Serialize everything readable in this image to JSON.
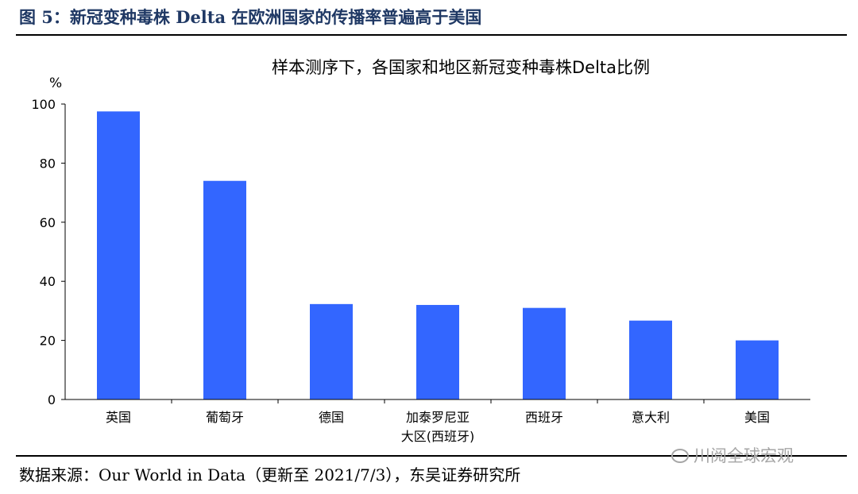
{
  "figure": {
    "title": "图 5：新冠变种毒株 Delta 在欧洲国家的传播率普遍高于美国",
    "source": "数据来源：Our World in Data（更新至 2021/7/3），东吴证券研究所",
    "watermark": "川阅全球宏观",
    "watermark_icon": "wechat-icon"
  },
  "chart_data": {
    "type": "bar",
    "title": "样本测序下，各国家和地区新冠变种毒株Delta比例",
    "ylabel": "%",
    "xlabel": "",
    "categories": [
      "英国",
      "葡萄牙",
      "德国",
      "加泰罗尼亚\n大区(西班牙)",
      "西班牙",
      "意大利",
      "美国"
    ],
    "values": [
      97.5,
      74,
      32.3,
      32,
      31,
      26.7,
      20
    ],
    "ylim": [
      0,
      100
    ],
    "yticks": [
      0,
      20,
      40,
      60,
      80,
      100
    ],
    "bar_color": "#3366ff",
    "grid": false,
    "legend": "none"
  }
}
